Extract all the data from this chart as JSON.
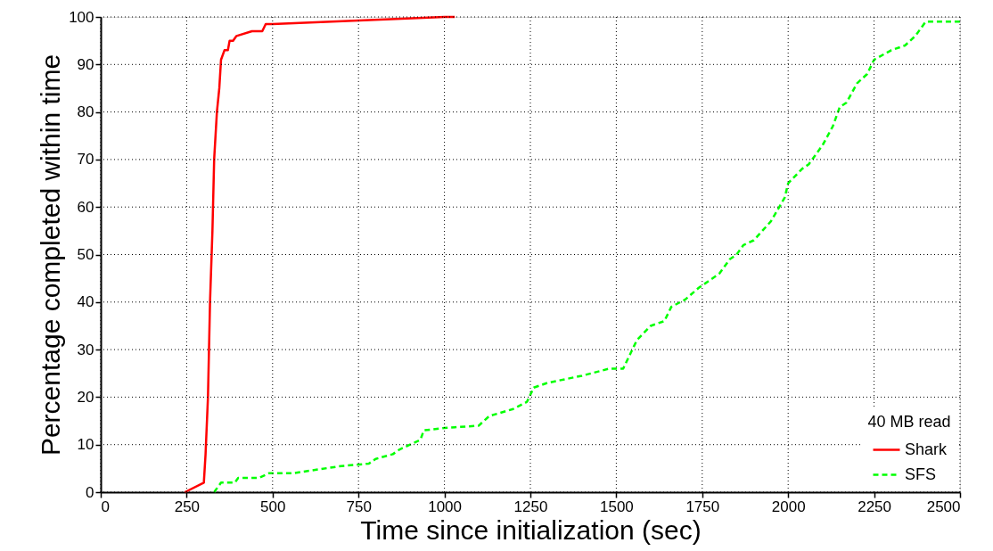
{
  "chart_data": {
    "type": "line",
    "xlabel": "Time since initialization (sec)",
    "ylabel": "Percentage completed within time",
    "legend_title": "40 MB read",
    "xlim": [
      0,
      2500
    ],
    "ylim": [
      0,
      100
    ],
    "xticks": [
      0,
      250,
      500,
      750,
      1000,
      1250,
      1500,
      1750,
      2000,
      2250,
      2500
    ],
    "yticks": [
      0,
      10,
      20,
      30,
      40,
      50,
      60,
      70,
      80,
      90,
      100
    ],
    "grid": true,
    "legend": "bottom right",
    "series": [
      {
        "name": "Shark",
        "color": "#ff0000",
        "line_style": "solid",
        "x": [
          245,
          300,
          305,
          312,
          318,
          325,
          330,
          338,
          345,
          350,
          360,
          370,
          375,
          385,
          395,
          440,
          470,
          480,
          500,
          1000,
          1030
        ],
        "values": [
          0,
          2,
          8,
          20,
          40,
          55,
          70,
          80,
          85,
          91,
          93,
          93,
          95,
          95,
          96,
          97,
          97,
          98.5,
          98.5,
          100,
          100
        ]
      },
      {
        "name": "SFS",
        "color": "#00ff00",
        "line_style": "dashed",
        "x": [
          330,
          350,
          390,
          400,
          460,
          490,
          560,
          700,
          780,
          800,
          850,
          870,
          900,
          930,
          940,
          1000,
          1100,
          1130,
          1200,
          1240,
          1260,
          1300,
          1400,
          1480,
          1520,
          1540,
          1560,
          1600,
          1640,
          1660,
          1700,
          1740,
          1800,
          1830,
          1850,
          1870,
          1900,
          1950,
          1990,
          2000,
          2040,
          2060,
          2100,
          2130,
          2150,
          2170,
          2200,
          2230,
          2250,
          2300,
          2340,
          2370,
          2400,
          2500
        ],
        "values": [
          0,
          2,
          2,
          3,
          3,
          4,
          4,
          5.5,
          6,
          7,
          8,
          9,
          10,
          11,
          13,
          13.5,
          14,
          16,
          17.5,
          19,
          22,
          23,
          24.5,
          26,
          26,
          29,
          32,
          35,
          36,
          39,
          40.5,
          43,
          46,
          49,
          50,
          52,
          53,
          57,
          62,
          65,
          68,
          69,
          73,
          77,
          81,
          82,
          86,
          88,
          91,
          93,
          94,
          96,
          99,
          99
        ]
      }
    ]
  }
}
